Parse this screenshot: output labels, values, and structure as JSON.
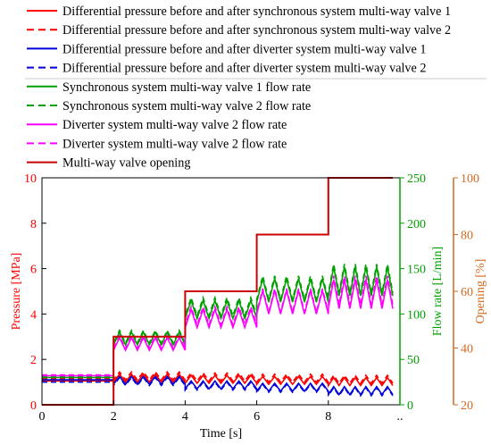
{
  "chart_data": {
    "type": "line",
    "xlabel": "Time [s]",
    "x_ticks": [
      "0",
      "2",
      "4",
      "6",
      "8",
      ".."
    ],
    "xlim": [
      0,
      10
    ],
    "axes": {
      "pressure": {
        "label": "Pressure [MPa]",
        "ylim": [
          0,
          10
        ],
        "ticks": [
          0,
          2,
          4,
          6,
          8,
          10
        ],
        "color": "#ff0000"
      },
      "flow": {
        "label": "Flow rate [L/min]",
        "ylim": [
          0,
          250
        ],
        "ticks": [
          0,
          50,
          100,
          150,
          200,
          250
        ],
        "color": "#00a000"
      },
      "opening": {
        "label": "Opening [%]",
        "ylim": [
          20,
          100
        ],
        "ticks": [
          20,
          40,
          60,
          80,
          100
        ],
        "color": "#d2691e"
      }
    },
    "grid": false,
    "legend_position": "top",
    "series": [
      {
        "name": "Differential pressure before and after synchronous system multi-way valve 1",
        "axis": "pressure",
        "color": "#ff0000",
        "dash": "solid",
        "x": [
          0,
          2,
          4,
          6,
          8,
          9.8
        ],
        "values": [
          1.05,
          1.0,
          0.95,
          0.9,
          0.85,
          0.8
        ]
      },
      {
        "name": "Differential pressure before and after synchronous system multi-way valve 2",
        "axis": "pressure",
        "color": "#ff0000",
        "dash": "dashed",
        "x": [
          0,
          2,
          4,
          6,
          8,
          9.8
        ],
        "values": [
          1.15,
          1.1,
          1.05,
          1.0,
          0.95,
          0.9
        ]
      },
      {
        "name": "Differential pressure before and after diverter system multi-way valve 1",
        "axis": "pressure",
        "color": "#0000dd",
        "dash": "solid",
        "x": [
          0,
          2,
          4,
          6,
          8,
          9.8
        ],
        "values": [
          1.1,
          0.9,
          0.7,
          0.6,
          0.45,
          0.4
        ]
      },
      {
        "name": "Differential pressure before and after diverter system multi-way valve 2",
        "axis": "pressure",
        "color": "#0000dd",
        "dash": "dashed",
        "x": [
          0,
          2,
          4,
          6,
          8,
          9.8
        ],
        "values": [
          1.0,
          0.85,
          0.65,
          0.55,
          0.4,
          0.35
        ]
      },
      {
        "name": "Synchronous system multi-way valve 1 flow rate",
        "axis": "flow",
        "color": "#00a000",
        "dash": "solid",
        "x": [
          0,
          2,
          4,
          6,
          8,
          9.8
        ],
        "values": [
          30,
          66,
          95,
          113,
          120,
          120
        ]
      },
      {
        "name": "Synchronous system multi-way valve 2 flow rate",
        "axis": "flow",
        "color": "#00a000",
        "dash": "dashed",
        "x": [
          0,
          2,
          4,
          6,
          8,
          9.8
        ],
        "values": [
          31,
          68,
          98,
          116,
          123,
          123
        ]
      },
      {
        "name": "Diverter system multi-way valve 2 flow rate",
        "axis": "flow",
        "color": "#ff00ff",
        "dash": "solid",
        "x": [
          0,
          2,
          4,
          6,
          8,
          9.8
        ],
        "values": [
          32,
          60,
          85,
          100,
          106,
          106
        ]
      },
      {
        "name": "Diverter system multi-way valve 2 flow rate",
        "axis": "flow",
        "color": "#ff00ff",
        "dash": "dashed",
        "x": [
          0,
          2,
          4,
          6,
          8,
          9.8
        ],
        "values": [
          33,
          62,
          88,
          102,
          110,
          110
        ]
      },
      {
        "name": "Multi-way valve opening",
        "axis": "opening",
        "color": "#cc0000",
        "dash": "solid",
        "x": [
          0,
          2,
          2,
          4,
          4,
          6,
          6,
          8,
          8,
          9.8
        ],
        "values": [
          20,
          20,
          44,
          44,
          60,
          60,
          80,
          80,
          100,
          100
        ]
      }
    ]
  }
}
